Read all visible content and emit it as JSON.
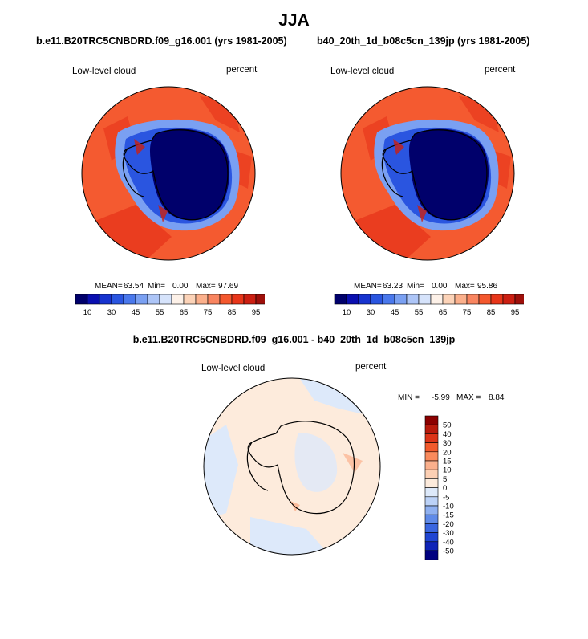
{
  "page": {
    "title": "JJA"
  },
  "chart_data": [
    {
      "type": "heatmap",
      "projection": "south-polar-stereographic",
      "title": "b.e11.B20TRC5CNBDRD.f09_g16.001 (yrs 1981-2005)",
      "left_label": "Low-level cloud",
      "right_label": "percent",
      "stats": {
        "mean_label": "MEAN=",
        "mean": "63.54",
        "min_label": "Min=",
        "min": "0.00",
        "max_label": "Max=",
        "max": "97.69"
      },
      "colorbar": {
        "orientation": "horizontal",
        "levels": [
          5,
          10,
          20,
          30,
          40,
          45,
          50,
          55,
          60,
          65,
          70,
          75,
          80,
          85,
          90,
          95
        ],
        "tick_labels": [
          "10",
          "30",
          "45",
          "55",
          "65",
          "75",
          "85",
          "95"
        ],
        "colors": [
          "#00006b",
          "#0a0fb0",
          "#1733cf",
          "#2a55e0",
          "#4a78ec",
          "#7aa0f2",
          "#adc5f7",
          "#d6e3fb",
          "#fdf1e8",
          "#fcd3b8",
          "#fbb08c",
          "#f98560",
          "#f4582e",
          "#e8361a",
          "#cc1f12",
          "#9e0f0a",
          "#6b0707"
        ]
      }
    },
    {
      "type": "heatmap",
      "projection": "south-polar-stereographic",
      "title": "b40_20th_1d_b08c5cn_139jp (yrs 1981-2005)",
      "left_label": "Low-level cloud",
      "right_label": "percent",
      "stats": {
        "mean_label": "MEAN=",
        "mean": "63.23",
        "min_label": "Min=",
        "min": "0.00",
        "max_label": "Max=",
        "max": "95.86"
      },
      "colorbar": {
        "orientation": "horizontal",
        "levels": [
          5,
          10,
          20,
          30,
          40,
          45,
          50,
          55,
          60,
          65,
          70,
          75,
          80,
          85,
          90,
          95
        ],
        "tick_labels": [
          "10",
          "30",
          "45",
          "55",
          "65",
          "75",
          "85",
          "95"
        ],
        "colors": [
          "#00006b",
          "#0a0fb0",
          "#1733cf",
          "#2a55e0",
          "#4a78ec",
          "#7aa0f2",
          "#adc5f7",
          "#d6e3fb",
          "#fdf1e8",
          "#fcd3b8",
          "#fbb08c",
          "#f98560",
          "#f4582e",
          "#e8361a",
          "#cc1f12",
          "#9e0f0a",
          "#6b0707"
        ]
      }
    },
    {
      "type": "heatmap",
      "projection": "south-polar-stereographic",
      "title": "b.e11.B20TRC5CNBDRD.f09_g16.001 - b40_20th_1d_b08c5cn_139jp",
      "left_label": "Low-level cloud",
      "right_label": "percent",
      "stats": {
        "min_label": "MIN =",
        "min": "-5.99",
        "max_label": "MAX =",
        "max": "8.84"
      },
      "colorbar": {
        "orientation": "vertical",
        "tick_labels": [
          "50",
          "40",
          "30",
          "20",
          "15",
          "10",
          "5",
          "0",
          "-5",
          "-10",
          "-15",
          "-20",
          "-30",
          "-40",
          "-50"
        ],
        "colors": [
          "#8b0000",
          "#b81a0c",
          "#dc3418",
          "#f25a2c",
          "#f98a5c",
          "#fbb08c",
          "#fdd0b4",
          "#fdebdc",
          "#dde9fa",
          "#bcd2f7",
          "#8fb0f0",
          "#5f8ae8",
          "#3a66e0",
          "#1f45d2",
          "#0f24b8",
          "#000080"
        ]
      }
    }
  ]
}
